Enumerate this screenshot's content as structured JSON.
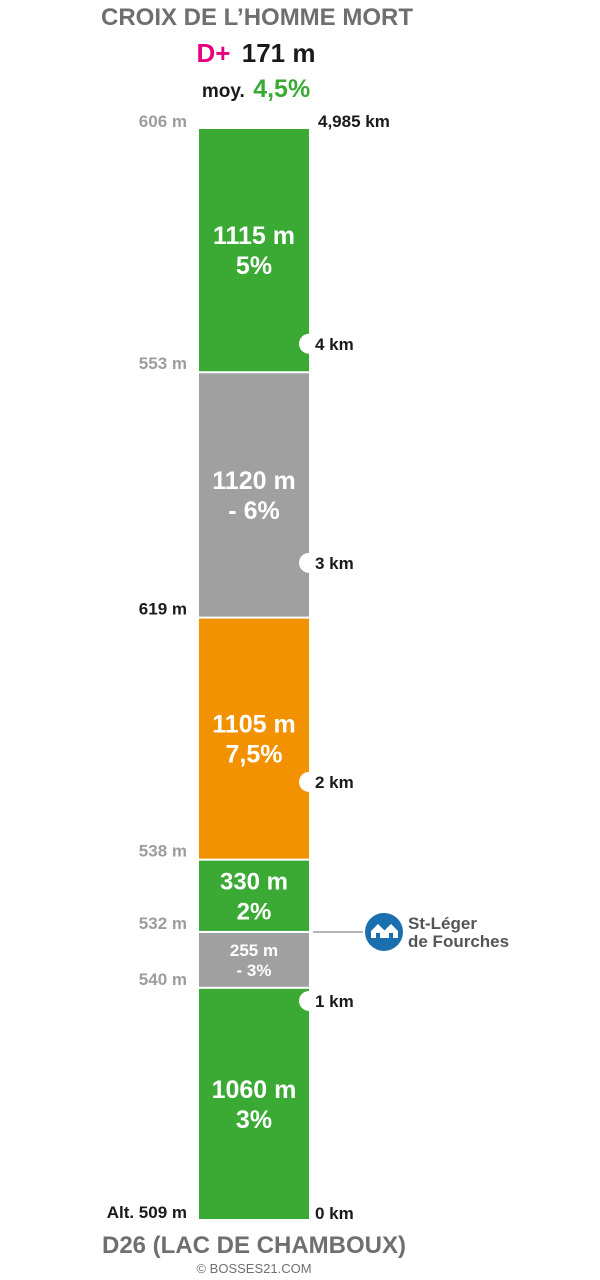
{
  "chart_data": {
    "type": "bar",
    "title": "CROIX DE L’HOMME MORT",
    "start_label": "D26 (LAC DE CHAMBOUX)",
    "summary": {
      "dplus_prefix": "D+",
      "dplus_value": "171 m",
      "avg_prefix": "moy.",
      "avg_value": "4,5%"
    },
    "total_distance_label": "4,985 km",
    "km_range": [
      0,
      4.985
    ],
    "segments": [
      {
        "start_km": 0.0,
        "end_km": 1.06,
        "length_label": "1060 m",
        "grade_label": "3%",
        "color": "#3aaa35"
      },
      {
        "start_km": 1.06,
        "end_km": 1.315,
        "length_label": "255 m",
        "grade_label": "- 3%",
        "color": "#a0a0a0"
      },
      {
        "start_km": 1.315,
        "end_km": 1.645,
        "length_label": "330 m",
        "grade_label": "2%",
        "color": "#3aaa35"
      },
      {
        "start_km": 1.645,
        "end_km": 2.75,
        "length_label": "1105 m",
        "grade_label": "7,5%",
        "color": "#f39200"
      },
      {
        "start_km": 2.75,
        "end_km": 3.87,
        "length_label": "1120 m",
        "grade_label": "- 6%",
        "color": "#a0a0a0"
      },
      {
        "start_km": 3.87,
        "end_km": 4.985,
        "length_label": "1115 m",
        "grade_label": "5%",
        "color": "#3aaa35"
      }
    ],
    "altitudes": [
      {
        "km": 0.0,
        "label": "Alt. 509 m",
        "emphasis": true
      },
      {
        "km": 1.06,
        "label": "540 m",
        "emphasis": false
      },
      {
        "km": 1.315,
        "label": "532 m",
        "emphasis": false
      },
      {
        "km": 1.645,
        "label": "538 m",
        "emphasis": false
      },
      {
        "km": 2.75,
        "label": "619 m",
        "emphasis": true
      },
      {
        "km": 3.87,
        "label": "553 m",
        "emphasis": false
      },
      {
        "km": 4.985,
        "label": "606 m",
        "emphasis": false
      }
    ],
    "km_markers": [
      {
        "km": 0,
        "label": "0 km",
        "notch": false
      },
      {
        "km": 1,
        "label": "1 km",
        "notch": true
      },
      {
        "km": 2,
        "label": "2 km",
        "notch": true
      },
      {
        "km": 3,
        "label": "3 km",
        "notch": true
      },
      {
        "km": 4,
        "label": "4 km",
        "notch": true
      }
    ],
    "place": {
      "km": 1.315,
      "line1": "St-Léger",
      "line2": "de Fourches",
      "icon": "village-icon",
      "color": "#1a6fae"
    }
  },
  "colors": {
    "dplus": "#e6007e",
    "avg": "#3aaa35",
    "text_dark": "#1a1a1a",
    "text_grey": "#9d9d9d"
  },
  "copyright": "© BOSSES21.COM"
}
